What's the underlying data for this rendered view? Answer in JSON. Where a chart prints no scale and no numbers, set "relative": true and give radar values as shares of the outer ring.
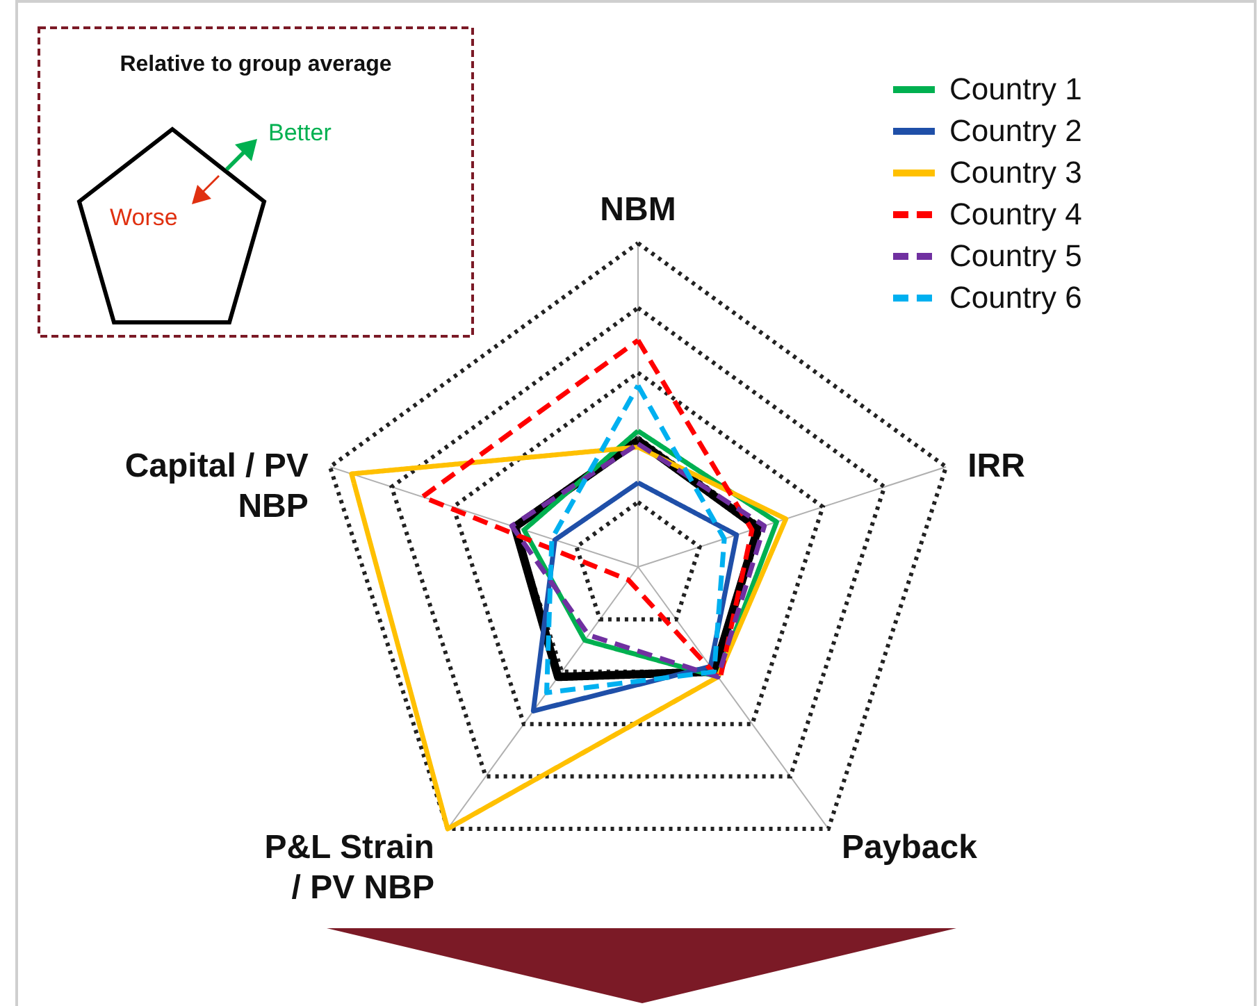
{
  "chart_data": {
    "type": "radar",
    "relative": true,
    "grid": true,
    "legend": "top right",
    "categories": [
      "NBM",
      "IRR",
      "Payback",
      "P&L Strain\n/ PV NBP",
      "Capital / PV\nNBP"
    ],
    "series": [
      {
        "color": "#000000",
        "line_style": "solid",
        "values": [
          0.39,
          0.39,
          0.4,
          0.42,
          0.4
        ]
      },
      {
        "name": "Country 1",
        "color": "#00b050",
        "line_style": "solid",
        "values": [
          0.42,
          0.45,
          0.42,
          0.28,
          0.37
        ]
      },
      {
        "name": "Country 2",
        "color": "#1f4fa8",
        "line_style": "solid",
        "values": [
          0.26,
          0.32,
          0.38,
          0.55,
          0.27
        ]
      },
      {
        "name": "Country 3",
        "color": "#ffc000",
        "line_style": "solid",
        "values": [
          0.37,
          0.48,
          0.42,
          1.0,
          0.93
        ]
      },
      {
        "name": "Country 4",
        "color": "#ff0000",
        "line_style": "dashed",
        "values": [
          0.7,
          0.37,
          0.43,
          0.05,
          0.7
        ]
      },
      {
        "name": "Country 5",
        "color": "#7030a0",
        "line_style": "dashed",
        "values": [
          0.38,
          0.41,
          0.42,
          0.26,
          0.41
        ]
      },
      {
        "name": "Country 6",
        "color": "#00b0f0",
        "line_style": "dashed",
        "values": [
          0.56,
          0.28,
          0.4,
          0.48,
          0.28
        ]
      }
    ],
    "annotations": [
      "Relative to group average",
      "Better",
      "Worse"
    ]
  }
}
